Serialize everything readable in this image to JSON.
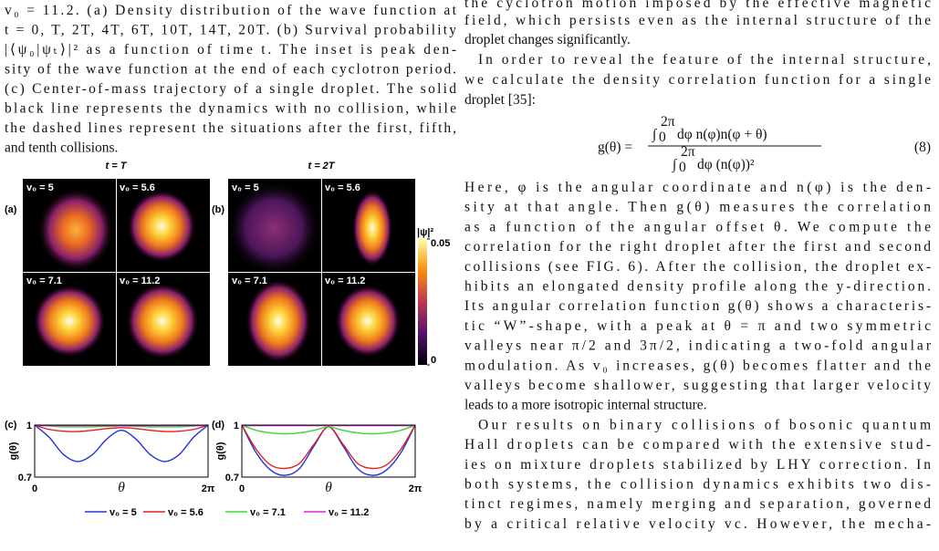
{
  "caption": {
    "lines": [
      "v₀ = 11.2. (a) Density distribution of the wave function at",
      "t = 0, T, 2T, 4T, 6T, 10T, 14T, 20T. (b) Survival probability",
      "|⟨ψ₀|ψₜ⟩|² as a function of time t. The inset is peak den-",
      "sity of the wave function at the end of each cyclotron period.",
      "(c) Center-of-mass trajectory of a single droplet. The solid",
      "black line represents the dynamics with no collision, while",
      "the dashed lines represent the situations after the first, fifth,",
      "and tenth collisions."
    ]
  },
  "figure": {
    "panel_labels": [
      "(a)",
      "(b)",
      "(c)",
      "(d)"
    ],
    "titles": [
      "t = T",
      "t = 2T"
    ],
    "a_labels": [
      "v₀ = 5",
      "v₀ = 5.6",
      "v₀ = 7.1",
      "v₀ = 11.2"
    ],
    "b_labels": [
      "v₀ = 5",
      "v₀ = 5.6",
      "v₀ = 7.1",
      "v₀ = 11.2"
    ],
    "colorbar": {
      "label": "|ψ|²",
      "clim": [
        0,
        0.05
      ],
      "ticks": [
        0.05,
        0
      ]
    },
    "charts": [
      {
        "type": "line",
        "xlabel": "θ",
        "ylabel": "g(θ)",
        "xlim": [
          0,
          6.283
        ],
        "ylim": [
          0.7,
          1
        ],
        "xticks": [
          0,
          {
            "value": 6.283,
            "label": "2π"
          }
        ],
        "yticks": [
          1,
          0.7
        ],
        "x": [
          0,
          0.524,
          1.047,
          1.571,
          2.094,
          2.618,
          3.142,
          3.665,
          4.189,
          4.712,
          5.236,
          5.76,
          6.283
        ],
        "series": [
          {
            "name": "v₀ = 5",
            "color": "#2233dd",
            "values": [
              1.0,
              0.93,
              0.83,
              0.79,
              0.83,
              0.92,
              0.97,
              0.92,
              0.83,
              0.79,
              0.83,
              0.93,
              1.0
            ]
          },
          {
            "name": "v₀ = 5.6",
            "color": "#dd2222",
            "values": [
              1.0,
              0.975,
              0.965,
              0.963,
              0.97,
              0.98,
              0.985,
              0.98,
              0.97,
              0.963,
              0.965,
              0.975,
              1.0
            ]
          },
          {
            "name": "v₀ = 7.1",
            "color": "#33dd33",
            "values": [
              1.0,
              0.995,
              0.99,
              0.99,
              0.99,
              0.993,
              0.995,
              0.993,
              0.99,
              0.99,
              0.99,
              0.995,
              1.0
            ]
          },
          {
            "name": "v₀ = 11.2",
            "color": "#dd22dd",
            "values": [
              0.997,
              0.997,
              0.997,
              0.997,
              0.997,
              0.997,
              0.997,
              0.997,
              0.997,
              0.997,
              0.997,
              0.997,
              0.997
            ]
          }
        ]
      },
      {
        "type": "line",
        "xlabel": "θ",
        "ylabel": "g(θ)",
        "xlim": [
          0,
          6.283
        ],
        "ylim": [
          0.7,
          1
        ],
        "xticks": [
          0,
          {
            "value": 6.283,
            "label": "2π"
          }
        ],
        "yticks": [
          1,
          0.7
        ],
        "x": [
          0,
          0.524,
          1.047,
          1.571,
          2.094,
          2.618,
          3.142,
          3.665,
          4.189,
          4.712,
          5.236,
          5.76,
          6.283
        ],
        "series": [
          {
            "name": "v₀ = 5",
            "color": "#2233dd",
            "values": [
              1.0,
              0.84,
              0.74,
              0.71,
              0.75,
              0.88,
              0.99,
              0.88,
              0.75,
              0.71,
              0.74,
              0.84,
              1.0
            ]
          },
          {
            "name": "v₀ = 5.6",
            "color": "#dd2222",
            "values": [
              1.0,
              0.86,
              0.77,
              0.75,
              0.78,
              0.89,
              0.99,
              0.89,
              0.78,
              0.75,
              0.77,
              0.86,
              1.0
            ]
          },
          {
            "name": "v₀ = 7.1",
            "color": "#33dd33",
            "values": [
              1.0,
              0.97,
              0.955,
              0.95,
              0.955,
              0.97,
              0.99,
              0.97,
              0.955,
              0.95,
              0.955,
              0.97,
              1.0
            ]
          },
          {
            "name": "v₀ = 11.2",
            "color": "#dd22dd",
            "values": [
              0.997,
              0.997,
              0.997,
              0.997,
              0.997,
              0.997,
              0.997,
              0.997,
              0.997,
              0.997,
              0.997,
              0.997,
              0.997
            ]
          }
        ]
      }
    ]
  },
  "text": {
    "lines_before": [
      "the cyclotron motion imposed by the effective magnetic",
      "field, which persists even as the internal structure of the",
      "droplet changes significantly.",
      "In order to reveal the feature of the internal structure,",
      "we calculate the density correlation function for a single",
      "droplet [35]:"
    ],
    "equation": {
      "lhs": "g(θ) =",
      "integral": "∫",
      "upper": "2π",
      "lower": "0",
      "numerator": "dφ n(φ)n(φ + θ)",
      "denominator": "dφ (n(φ))²",
      "number": "(8)"
    },
    "lines_after": [
      "Here, φ is the angular coordinate and n(φ) is the den-",
      "sity at that angle. Then g(θ) measures the correlation",
      "as a function of the angular offset θ. We compute the",
      "correlation for the right droplet after the first and second",
      "collisions (see FIG. 6). After the collision, the droplet ex-",
      "hibits an elongated density profile along the y-direction.",
      "Its angular correlation function g(θ) shows a characteris-",
      "tic “W”-shape, with a peak at θ = π and two symmetric",
      "valleys near π/2 and 3π/2, indicating a two-fold angular",
      "modulation. As v₀ increases, g(θ) becomes flatter and the",
      "valleys become shallower, suggesting that larger velocity",
      "leads to a more isotropic internal structure.",
      "Our results on binary collisions of bosonic quantum",
      "Hall droplets can be compared with the extensive stud-",
      "ies on mixture droplets stabilized by LHY correction. In",
      "both systems, the collision dynamics exhibits two dis-",
      "tinct regimes, namely merging and separation, governed",
      "by a critical relative velocity vc. However, the mecha-"
    ]
  }
}
